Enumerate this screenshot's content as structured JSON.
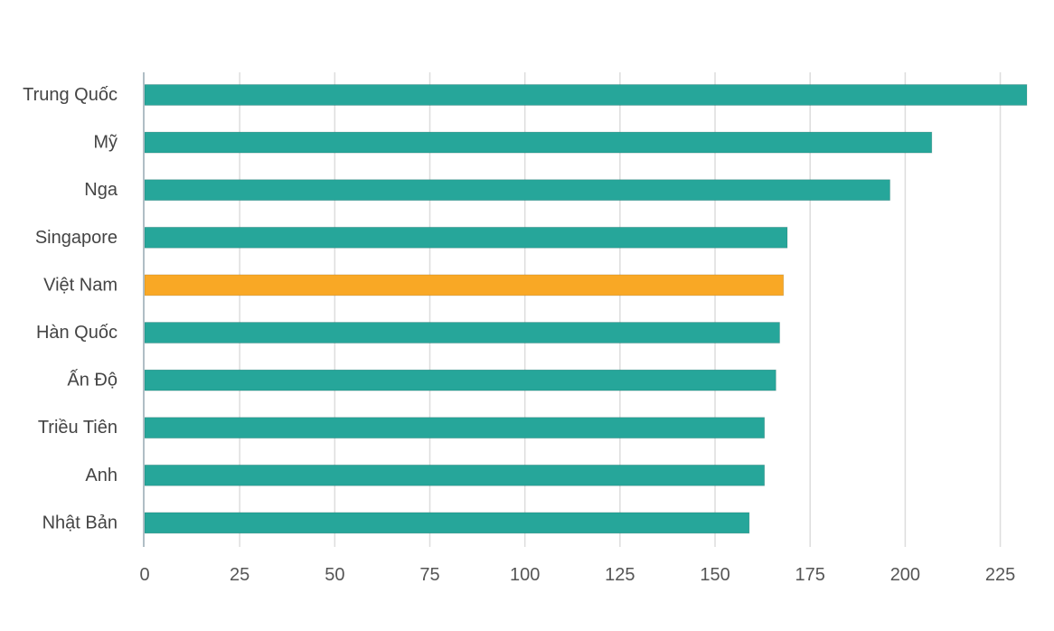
{
  "chart_data": {
    "type": "bar",
    "orientation": "horizontal",
    "title": "",
    "xlabel": "",
    "ylabel": "",
    "categories": [
      "Trung Quốc",
      "Mỹ",
      "Nga",
      "Singapore",
      "Việt Nam",
      "Hàn Quốc",
      "Ấn Độ",
      "Triều Tiên",
      "Anh",
      "Nhật Bản"
    ],
    "values": [
      232,
      207,
      196,
      169,
      168,
      167,
      166,
      163,
      163,
      159
    ],
    "highlight_category": "Việt Nam",
    "xlim": [
      0,
      232
    ],
    "xticks": [
      0,
      25,
      50,
      75,
      100,
      125,
      150,
      175,
      200,
      225
    ],
    "grid": "vertical",
    "colors": {
      "bar": "#26A69A",
      "highlight": "#F9A825",
      "grid": "#DDDDDD",
      "axis": "#B0BEC5"
    }
  }
}
